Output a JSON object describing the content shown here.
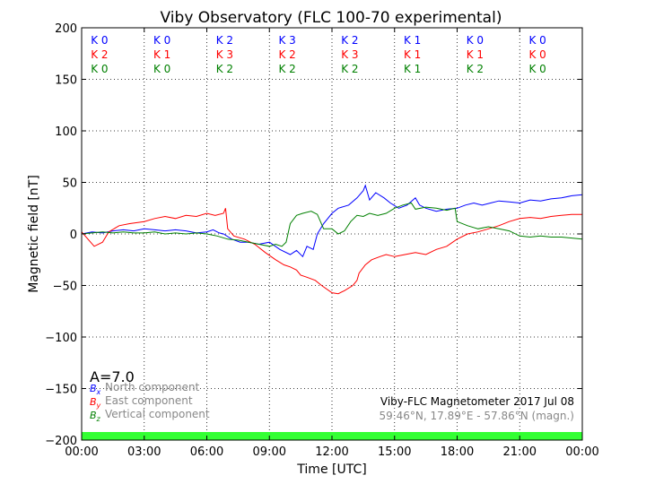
{
  "chart_data": {
    "type": "line",
    "title": "Viby Observatory (FLC 100-70 experimental)",
    "xlabel": "Time [UTC]",
    "ylabel": "Magnetic field [nT]",
    "xlim": [
      0,
      24
    ],
    "ylim": [
      -200,
      200
    ],
    "xticks": [
      0,
      3,
      6,
      9,
      12,
      15,
      18,
      21,
      24
    ],
    "xtick_labels": [
      "00:00",
      "03:00",
      "06:00",
      "09:00",
      "12:00",
      "15:00",
      "18:00",
      "21:00",
      "00:00"
    ],
    "yticks": [
      -200,
      -150,
      -100,
      -50,
      0,
      50,
      100,
      150,
      200
    ],
    "ytick_labels": [
      "−200",
      "−150",
      "−100",
      "−50",
      "0",
      "50",
      "100",
      "150",
      "200"
    ],
    "grid": true,
    "index_label": "A=7.0",
    "k_indices": {
      "intervals": [
        [
          0,
          3
        ],
        [
          3,
          6
        ],
        [
          6,
          9
        ],
        [
          9,
          12
        ],
        [
          12,
          15
        ],
        [
          15,
          18
        ],
        [
          18,
          21
        ],
        [
          21,
          24
        ]
      ],
      "rows": [
        {
          "color": "#0000ff",
          "labels": [
            "K 0",
            "K 0",
            "K 2",
            "K 3",
            "K 2",
            "K 1",
            "K 0",
            "K 0"
          ]
        },
        {
          "color": "#ff0000",
          "labels": [
            "K 2",
            "K 1",
            "K 3",
            "K 2",
            "K 3",
            "K 1",
            "K 1",
            "K 0"
          ]
        },
        {
          "color": "#008000",
          "labels": [
            "K 0",
            "K 0",
            "K 2",
            "K 2",
            "K 2",
            "K 1",
            "K 2",
            "K 0"
          ]
        }
      ]
    },
    "legend": {
      "position": "bottom-left",
      "entries": [
        {
          "symbol": "B",
          "sub": "x",
          "text": "North component",
          "color": "#0000ff"
        },
        {
          "symbol": "B",
          "sub": "y",
          "text": "East component",
          "color": "#ff0000"
        },
        {
          "symbol": "B",
          "sub": "z",
          "text": "Vertical component",
          "color": "#008000"
        }
      ]
    },
    "annotations": [
      "Viby-FLC Magnetometer 2017 Jul 08",
      "59.46°N, 17.89°E - 57.86°N (magn.)"
    ],
    "activity_bar_color": "#33ff33",
    "series": [
      {
        "label": "North component",
        "color": "#0000ff",
        "points": [
          [
            0,
            0
          ],
          [
            0.5,
            2
          ],
          [
            1,
            1
          ],
          [
            1.5,
            3
          ],
          [
            2,
            4
          ],
          [
            2.5,
            3
          ],
          [
            3,
            5
          ],
          [
            3.5,
            4
          ],
          [
            4,
            3
          ],
          [
            4.5,
            4
          ],
          [
            5,
            3
          ],
          [
            5.5,
            1
          ],
          [
            6,
            2
          ],
          [
            6.3,
            4
          ],
          [
            6.6,
            1
          ],
          [
            6.8,
            0
          ],
          [
            7.2,
            -5
          ],
          [
            7.6,
            -8
          ],
          [
            8,
            -8
          ],
          [
            8.5,
            -10
          ],
          [
            9,
            -8
          ],
          [
            9.5,
            -15
          ],
          [
            10,
            -20
          ],
          [
            10.3,
            -16
          ],
          [
            10.6,
            -22
          ],
          [
            10.8,
            -12
          ],
          [
            11.1,
            -15
          ],
          [
            11.3,
            0
          ],
          [
            11.6,
            10
          ],
          [
            12,
            20
          ],
          [
            12.3,
            25
          ],
          [
            12.8,
            28
          ],
          [
            13.2,
            35
          ],
          [
            13.5,
            42
          ],
          [
            13.6,
            47
          ],
          [
            13.8,
            33
          ],
          [
            14.1,
            40
          ],
          [
            14.5,
            35
          ],
          [
            14.8,
            30
          ],
          [
            15.2,
            25
          ],
          [
            15.6,
            28
          ],
          [
            16,
            35
          ],
          [
            16.2,
            28
          ],
          [
            16.5,
            25
          ],
          [
            17,
            22
          ],
          [
            17.5,
            24
          ],
          [
            18,
            25
          ],
          [
            18.4,
            28
          ],
          [
            18.8,
            30
          ],
          [
            19.2,
            28
          ],
          [
            19.6,
            30
          ],
          [
            20,
            32
          ],
          [
            20.5,
            31
          ],
          [
            21,
            30
          ],
          [
            21.5,
            33
          ],
          [
            22,
            32
          ],
          [
            22.5,
            34
          ],
          [
            23,
            35
          ],
          [
            23.5,
            37
          ],
          [
            24,
            38
          ]
        ]
      },
      {
        "label": "East component",
        "color": "#ff0000",
        "points": [
          [
            0,
            2
          ],
          [
            0.3,
            -5
          ],
          [
            0.6,
            -12
          ],
          [
            1,
            -8
          ],
          [
            1.3,
            2
          ],
          [
            1.8,
            8
          ],
          [
            2.3,
            10
          ],
          [
            3,
            12
          ],
          [
            3.5,
            15
          ],
          [
            4,
            17
          ],
          [
            4.5,
            15
          ],
          [
            5,
            18
          ],
          [
            5.5,
            17
          ],
          [
            6,
            20
          ],
          [
            6.4,
            18
          ],
          [
            6.8,
            20
          ],
          [
            6.9,
            25
          ],
          [
            7,
            5
          ],
          [
            7.3,
            -2
          ],
          [
            7.8,
            -5
          ],
          [
            8.3,
            -10
          ],
          [
            8.8,
            -18
          ],
          [
            9.3,
            -25
          ],
          [
            9.7,
            -30
          ],
          [
            10,
            -32
          ],
          [
            10.3,
            -35
          ],
          [
            10.5,
            -40
          ],
          [
            10.8,
            -42
          ],
          [
            11.2,
            -45
          ],
          [
            11.5,
            -50
          ],
          [
            12,
            -57
          ],
          [
            12.3,
            -58
          ],
          [
            12.6,
            -55
          ],
          [
            13,
            -50
          ],
          [
            13.2,
            -45
          ],
          [
            13.3,
            -38
          ],
          [
            13.6,
            -30
          ],
          [
            13.9,
            -25
          ],
          [
            14.3,
            -22
          ],
          [
            14.6,
            -20
          ],
          [
            15,
            -22
          ],
          [
            15.5,
            -20
          ],
          [
            16,
            -18
          ],
          [
            16.5,
            -20
          ],
          [
            17,
            -15
          ],
          [
            17.5,
            -12
          ],
          [
            18,
            -5
          ],
          [
            18.5,
            0
          ],
          [
            19,
            2
          ],
          [
            19.5,
            5
          ],
          [
            20,
            8
          ],
          [
            20.5,
            12
          ],
          [
            21,
            15
          ],
          [
            21.5,
            16
          ],
          [
            22,
            15
          ],
          [
            22.5,
            17
          ],
          [
            23,
            18
          ],
          [
            23.5,
            19
          ],
          [
            24,
            19
          ]
        ]
      },
      {
        "label": "Vertical component",
        "color": "#008000",
        "points": [
          [
            0,
            0
          ],
          [
            0.5,
            1
          ],
          [
            1,
            2
          ],
          [
            1.5,
            1
          ],
          [
            2,
            2
          ],
          [
            2.5,
            1
          ],
          [
            3,
            1
          ],
          [
            3.5,
            2
          ],
          [
            4,
            0
          ],
          [
            4.5,
            1
          ],
          [
            5,
            0
          ],
          [
            5.5,
            1
          ],
          [
            6,
            0
          ],
          [
            6.5,
            -2
          ],
          [
            7,
            -5
          ],
          [
            7.5,
            -6
          ],
          [
            8,
            -8
          ],
          [
            8.5,
            -10
          ],
          [
            9,
            -12
          ],
          [
            9.3,
            -10
          ],
          [
            9.6,
            -12
          ],
          [
            9.8,
            -8
          ],
          [
            10,
            10
          ],
          [
            10.3,
            18
          ],
          [
            10.6,
            20
          ],
          [
            11,
            22
          ],
          [
            11.3,
            19
          ],
          [
            11.6,
            5
          ],
          [
            12,
            5
          ],
          [
            12.3,
            0
          ],
          [
            12.6,
            3
          ],
          [
            12.9,
            12
          ],
          [
            13.2,
            18
          ],
          [
            13.5,
            17
          ],
          [
            13.8,
            20
          ],
          [
            14.2,
            18
          ],
          [
            14.6,
            20
          ],
          [
            15,
            25
          ],
          [
            15.4,
            28
          ],
          [
            15.8,
            30
          ],
          [
            16,
            24
          ],
          [
            16.5,
            26
          ],
          [
            17,
            25
          ],
          [
            17.5,
            23
          ],
          [
            17.9,
            25
          ],
          [
            18,
            12
          ],
          [
            18.5,
            8
          ],
          [
            19,
            5
          ],
          [
            19.5,
            7
          ],
          [
            20,
            5
          ],
          [
            20.5,
            3
          ],
          [
            21,
            -2
          ],
          [
            21.5,
            -3
          ],
          [
            22,
            -2
          ],
          [
            22.5,
            -3
          ],
          [
            23,
            -3
          ],
          [
            23.5,
            -4
          ],
          [
            24,
            -5
          ]
        ]
      }
    ]
  }
}
